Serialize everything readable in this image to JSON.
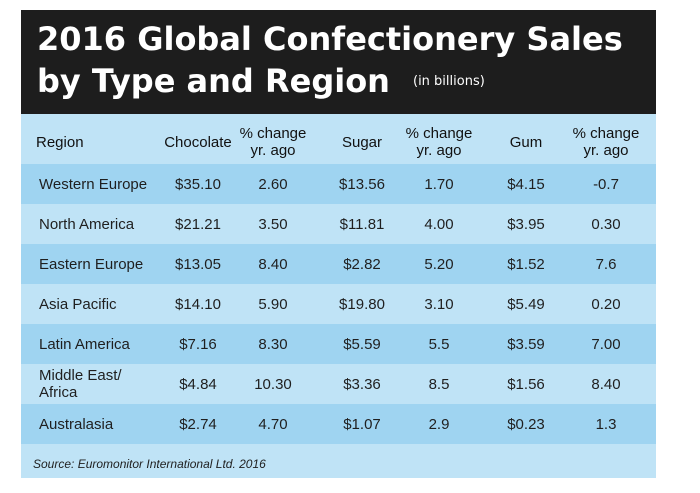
{
  "chart_data": {
    "type": "table",
    "title_line1": "2016 Global Confectionery Sales",
    "title_line2": "by Type and Region",
    "subtitle": "(in billions)",
    "columns": [
      "Region",
      "Chocolate",
      "% change yr. ago",
      "Sugar",
      "% change yr. ago",
      "Gum",
      "% change yr. ago"
    ],
    "column_lines": [
      [
        "Region"
      ],
      [
        "Chocolate"
      ],
      [
        "% change",
        "yr. ago"
      ],
      [
        "Sugar"
      ],
      [
        "% change",
        "yr. ago"
      ],
      [
        "Gum"
      ],
      [
        "% change",
        "yr. ago"
      ]
    ],
    "rows": [
      {
        "region": "Western Europe",
        "chocolate": "$35.10",
        "chocolate_change": "2.60",
        "sugar": "$13.56",
        "sugar_change": "1.70",
        "gum": "$4.15",
        "gum_change": "-0.7"
      },
      {
        "region": "North America",
        "chocolate": "$21.21",
        "chocolate_change": "3.50",
        "sugar": "$11.81",
        "sugar_change": "4.00",
        "gum": "$3.95",
        "gum_change": "0.30"
      },
      {
        "region": "Eastern Europe",
        "chocolate": "$13.05",
        "chocolate_change": "8.40",
        "sugar": "$2.82",
        "sugar_change": "5.20",
        "gum": "$1.52",
        "gum_change": "7.6"
      },
      {
        "region": "Asia Pacific",
        "chocolate": "$14.10",
        "chocolate_change": "5.90",
        "sugar": "$19.80",
        "sugar_change": "3.10",
        "gum": "$5.49",
        "gum_change": "0.20"
      },
      {
        "region": "Latin America",
        "chocolate": "$7.16",
        "chocolate_change": "8.30",
        "sugar": "$5.59",
        "sugar_change": "5.5",
        "gum": "$3.59",
        "gum_change": "7.00"
      },
      {
        "region": "Middle East/ Africa",
        "chocolate": "$4.84",
        "chocolate_change": "10.30",
        "sugar": "$3.36",
        "sugar_change": "8.5",
        "gum": "$1.56",
        "gum_change": "8.40"
      },
      {
        "region": "Australasia",
        "chocolate": "$2.74",
        "chocolate_change": "4.70",
        "sugar": "$1.07",
        "sugar_change": "2.9",
        "gum": "$0.23",
        "gum_change": "1.3"
      }
    ],
    "source": "Source: Euromonitor International Ltd. 2016"
  },
  "colors": {
    "header_bg": "#1d1d1d",
    "title_text": "#ffffff",
    "panel_bg": "#bfe3f6",
    "row_shaded": "#9fd4f1"
  }
}
